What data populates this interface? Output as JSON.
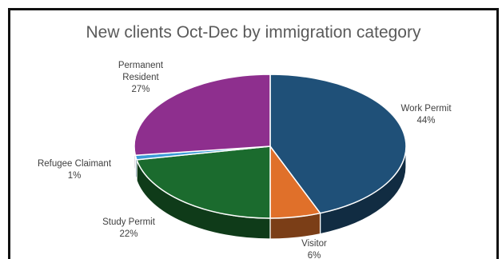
{
  "chart_data": {
    "type": "pie",
    "title": "New clients Oct-Dec by immigration category",
    "slices": [
      {
        "label": "Work Permit",
        "value": 44,
        "pct_label": "44%",
        "color": "#1f5078"
      },
      {
        "label": "Visitor",
        "value": 6,
        "pct_label": "6%",
        "color": "#e0702a"
      },
      {
        "label": "Study Permit",
        "value": 22,
        "pct_label": "22%",
        "color": "#1b6b2e"
      },
      {
        "label": "Refugee Claimant",
        "value": 1,
        "pct_label": "1%",
        "color": "#3a9bd6"
      },
      {
        "label": "Permanent Resident",
        "value": 27,
        "pct_label": "27%",
        "color": "#8e2f8e"
      }
    ],
    "three_d": true,
    "legend": "none",
    "data_labels": "outside"
  }
}
